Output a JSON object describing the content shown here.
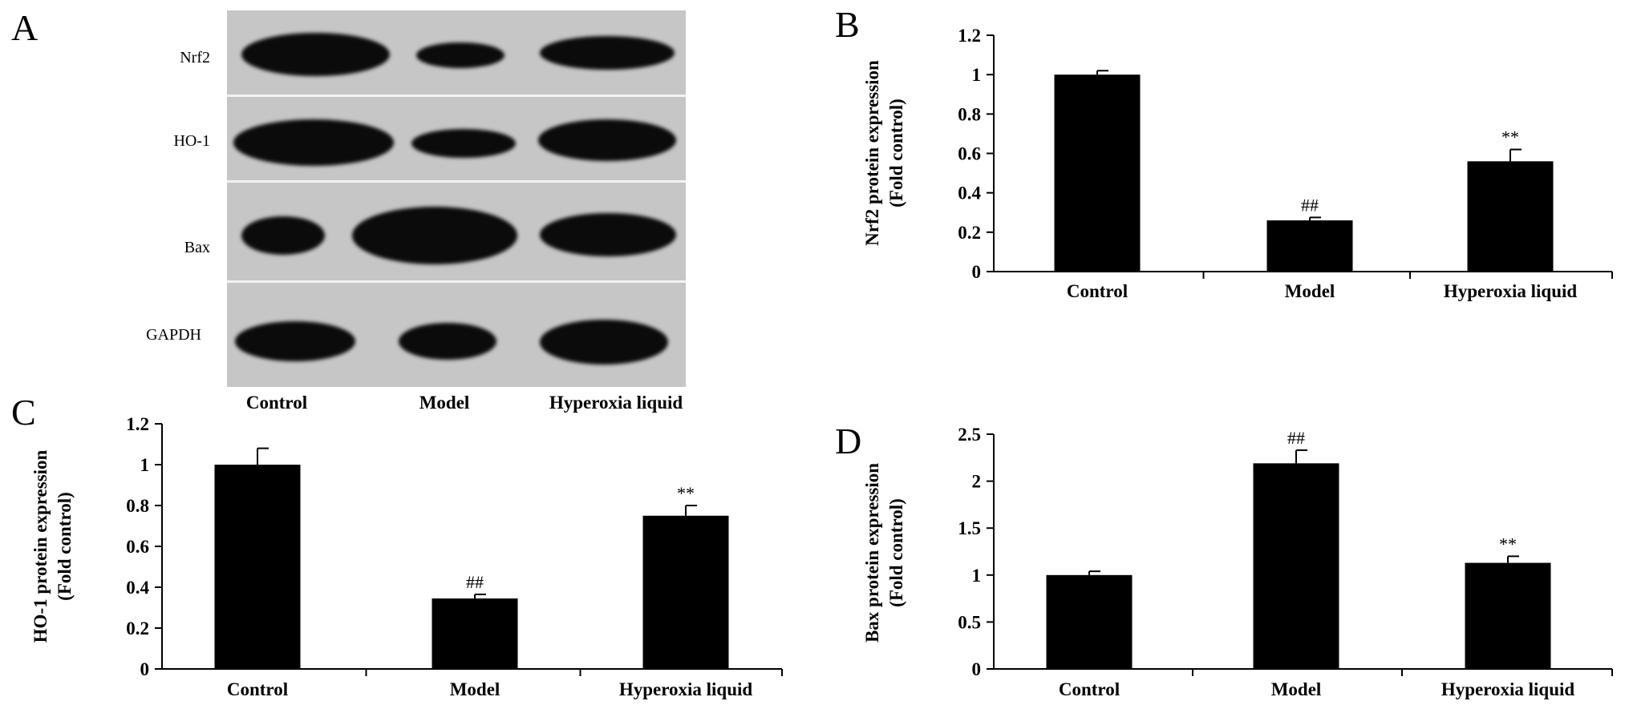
{
  "panels": {
    "a": {
      "letter": "A",
      "proteins": [
        "Nrf2",
        "HO-1",
        "Bax",
        "GAPDH"
      ],
      "lanes": [
        "Control",
        "Model",
        "Hyperoxia liquid"
      ]
    },
    "b": {
      "letter": "B"
    },
    "c": {
      "letter": "C"
    },
    "d": {
      "letter": "D"
    }
  },
  "chart_data": [
    {
      "type": "bar",
      "panel": "B",
      "categories": [
        "Control",
        "Model",
        "Hyperoxia liquid"
      ],
      "values": [
        1.0,
        0.26,
        0.56
      ],
      "errors": [
        0.02,
        0.015,
        0.06
      ],
      "annotations": [
        "",
        "##",
        "**"
      ],
      "ylabel": [
        "Nrf2 protein expression",
        "(Fold control)"
      ],
      "ylim": [
        0,
        1.2
      ],
      "yticks": [
        "0",
        "0.2",
        "0.4",
        "0.6",
        "0.8",
        "1",
        "1.2"
      ],
      "bar_color": "#000000",
      "grid": false
    },
    {
      "type": "bar",
      "panel": "C",
      "categories": [
        "Control",
        "Model",
        "Hyperoxia liquid"
      ],
      "values": [
        1.0,
        0.345,
        0.75
      ],
      "errors": [
        0.08,
        0.02,
        0.05
      ],
      "annotations": [
        "",
        "##",
        "**"
      ],
      "ylabel": [
        "HO-1 protein expression",
        "(Fold control)"
      ],
      "ylim": [
        0,
        1.2
      ],
      "yticks": [
        "0",
        "0.2",
        "0.4",
        "0.6",
        "0.8",
        "1",
        "1.2"
      ],
      "bar_color": "#000000",
      "grid": false
    },
    {
      "type": "bar",
      "panel": "D",
      "categories": [
        "Control",
        "Model",
        "Hyperoxia liquid"
      ],
      "values": [
        1.0,
        2.19,
        1.13
      ],
      "errors": [
        0.04,
        0.14,
        0.07
      ],
      "annotations": [
        "",
        "##",
        "**"
      ],
      "ylabel": [
        "Bax protein expression",
        "(Fold control)"
      ],
      "ylim": [
        0,
        2.5
      ],
      "yticks": [
        "0",
        "0.5",
        "1",
        "1.5",
        "2",
        "2.5"
      ],
      "bar_color": "#000000",
      "grid": false
    }
  ]
}
